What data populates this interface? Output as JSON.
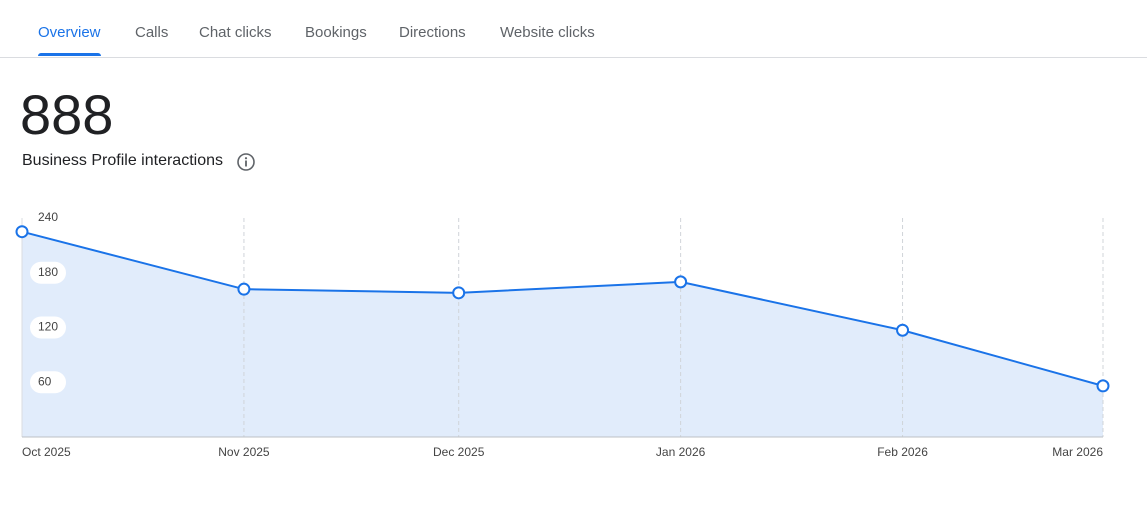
{
  "tabs": [
    "Overview",
    "Calls",
    "Chat clicks",
    "Bookings",
    "Directions",
    "Website clicks"
  ],
  "total": "888",
  "metric_label": "Business Profile interactions",
  "chart_data": {
    "type": "area",
    "x": [
      "Oct 2025",
      "Nov 2025",
      "Dec 2025",
      "Jan 2026",
      "Feb 2026",
      "Mar 2026"
    ],
    "values": [
      225,
      162,
      158,
      170,
      117,
      56
    ],
    "color": "#1a73e8",
    "ylim": [
      0,
      240
    ],
    "yticks": [
      60,
      120,
      180,
      240
    ],
    "grid": true
  }
}
